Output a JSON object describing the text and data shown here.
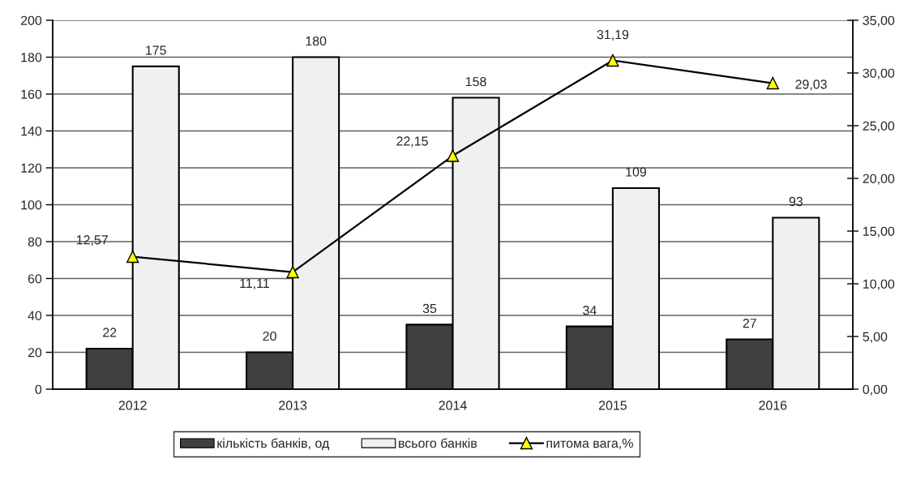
{
  "chart_data": {
    "type": "bar",
    "categories": [
      "2012",
      "2013",
      "2014",
      "2015",
      "2016"
    ],
    "series": [
      {
        "name": "кількість банків, од",
        "color": "#404040",
        "values": [
          22,
          20,
          35,
          34,
          27
        ],
        "value_labels": [
          "22",
          "20",
          "35",
          "34",
          "27"
        ]
      },
      {
        "name": "всього банків",
        "color": "#f0f0f0",
        "values": [
          175,
          180,
          158,
          109,
          93
        ],
        "value_labels": [
          "175",
          "180",
          "158",
          "109",
          "93"
        ]
      },
      {
        "name": "питома вага,%",
        "type": "line",
        "axis": "y2",
        "color": "#000000",
        "values": [
          12.57,
          11.11,
          22.15,
          31.19,
          29.03
        ],
        "value_labels": [
          "12,57",
          "11,11",
          "22,15",
          "31,19",
          "29,03"
        ]
      }
    ],
    "ylim": [
      0,
      200
    ],
    "yticks": [
      0,
      20,
      40,
      60,
      80,
      100,
      120,
      140,
      160,
      180,
      200
    ],
    "y2lim": [
      0,
      35
    ],
    "y2ticks": [
      {
        "value": 0,
        "label": "0,00"
      },
      {
        "value": 5,
        "label": "5,00"
      },
      {
        "value": 10,
        "label": "10,00"
      },
      {
        "value": 15,
        "label": "15,00"
      },
      {
        "value": 20,
        "label": "20,00"
      },
      {
        "value": 25,
        "label": "25,00"
      },
      {
        "value": 30,
        "label": "30,00"
      },
      {
        "value": 35,
        "label": "35,00"
      }
    ],
    "grid": "y",
    "legend": "bottom",
    "marker": "triangle"
  }
}
